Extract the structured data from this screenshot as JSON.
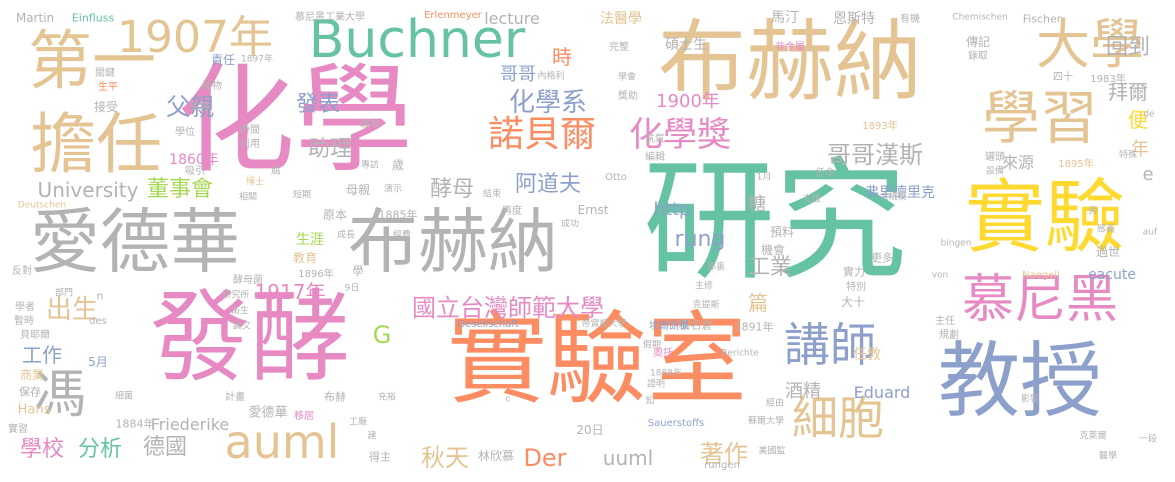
{
  "palette": {
    "pink": "#e78ac3",
    "orange": "#fc8d62",
    "green": "#66c2a5",
    "blue": "#8da0cb",
    "lime": "#a6d854",
    "yellow": "#ffd92f",
    "tan": "#e5c494",
    "gray": "#b3b3b3"
  },
  "words": {
    "w1": "化學",
    "w2": "研究",
    "w3": "布赫納",
    "w4": "實驗室",
    "w5": "發酵",
    "w6": "教授",
    "w7": "實驗",
    "w8": "愛德華",
    "w9": "布赫納",
    "w10": "擔任",
    "w11": "第一",
    "w12": "大學",
    "w13": "學習",
    "w14": "Buchner",
    "w15": "1907年",
    "w16": "慕尼黑",
    "w17": "auml",
    "w18": "講師",
    "w19": "細胞",
    "w20": "諾貝爾",
    "w21": "化學獎",
    "w22": "馮",
    "w23": "國立台灣師範大學",
    "w24": "哥哥漢斯",
    "w25": "父親",
    "w26": "化學系",
    "w27": "發表",
    "w28": "助理",
    "w29": "阿道夫",
    "w30": "出生",
    "w31": "酵母",
    "w32": "董事會",
    "w33": "University",
    "w34": "1917年",
    "w35": "1900年",
    "w36": "工業",
    "w37": "秋天",
    "w38": "Der",
    "w39": "學校",
    "w40": "分析",
    "w41": "德國",
    "w42": "著作",
    "w43": "uuml",
    "w44": "rung",
    "w45": "工作",
    "w46": "G",
    "w47": "回到",
    "w48": "拜爾",
    "w49": "便",
    "w50": "年",
    "w51": "時",
    "w52": "哥哥",
    "w53": "來源",
    "w54": "糖",
    "w55": "http",
    "w56": "篇",
    "w57": "酒精",
    "w58": "Eduard",
    "w59": "1860年",
    "w60": "lecture",
    "w61": "法醫學",
    "w62": "碩士生",
    "w63": "馬汀",
    "w64": "恩斯特",
    "w65": "弗里德里克",
    "w66": "責任",
    "w67": "生涯",
    "w68": "教育",
    "w69": "e",
    "w70": "eacute",
    "w71": "過世",
    "w72": "任教",
    "w73": "Friederike",
    "w74": "愛德華",
    "w75": "布赫",
    "w76": "母親",
    "w77": "原本",
    "w78": "Hans",
    "w79": "大十",
    "w80": "實力",
    "w81": "更多",
    "w82": "機會",
    "w83": "預料",
    "w84": "Ernst",
    "w85": "1885年",
    "w86": "Martin",
    "w87": "Einfluss",
    "w88": "Erlenmeyer",
    "w89": "慕尼黑工業大學",
    "w90": "Chemischen",
    "w91": "Fischer",
    "w92": "有機",
    "w93": "傳記",
    "w94": "錄取",
    "w95": "1893年",
    "w96": "1895年",
    "w97": "1983年",
    "w98": "四十",
    "w99": "非金屬",
    "w100": "完整",
    "w101": "內格利",
    "w102": "學會",
    "w103": "獎助",
    "w104": "Otto",
    "w105": "氣氣",
    "w106": "編輯",
    "w107": "1月",
    "w108": "任命",
    "w109": "支援",
    "w110": "大規模",
    "w111": "感義",
    "w112": "特殊",
    "w113": "設備",
    "w114": "罐頭",
    "w115": "bingen",
    "w116": "Naegeli",
    "w117": "auf",
    "w118": "von",
    "w119": "de",
    "w120": "特別",
    "w121": "主任",
    "w122": "規劃",
    "w123": "影響",
    "w124": "1891年",
    "w125": "葉名倉",
    "w126": "埃爾朗根",
    "w127": "克提斯",
    "w128": "帝實根大學",
    "w129": "Gesellschaft",
    "w130": "Berichte",
    "w131": "Sauerstoffs",
    "w132": "假期",
    "w133": "奧托",
    "w134": "1888年",
    "w135": "證明",
    "w136": "知",
    "w137": "蘇爾大學",
    "w138": "經由",
    "w139": "美國監",
    "w140": "rungen",
    "w141": "林欣慕",
    "w142": "得主",
    "w143": "20日",
    "w144": "克萊爾",
    "w145": "醫學",
    "w146": "一段",
    "w147": "5月",
    "w148": "貝耶爾",
    "w149": "商業",
    "w150": "保存",
    "w151": "細菌",
    "w152": "實習",
    "w153": "1884年",
    "w154": "計畫",
    "w155": "移居",
    "w156": "工廠",
    "w157": "衛生",
    "w158": "論文",
    "w159": "研究所",
    "w160": "酵母菌",
    "w161": "1896年",
    "w162": "9日",
    "w163": "學",
    "w164": "n",
    "w165": "des",
    "w166": "學者",
    "w167": "暫時",
    "w168": "部門",
    "w169": "反對",
    "w170": "Deutschen",
    "w171": "成長",
    "w172": "經費",
    "w173": "再度",
    "w174": "成功",
    "w175": "結束",
    "w176": "演示",
    "w177": "歲",
    "w178": "專訪",
    "w179": "破裂",
    "w180": "短期",
    "w181": "相關",
    "w182": "博士",
    "w183": "吸引",
    "w184": "利用",
    "w185": "時間",
    "w186": "學位",
    "w187": "監督",
    "w188": "植物",
    "w189": "1897年",
    "w190": "接受",
    "w191": "生平",
    "w192": "關鍵",
    "w193": "腐",
    "w194": "充裕",
    "w195": "c",
    "w196": "建",
    "w197": "旁",
    "w198": "主修",
    "w199": "那裏"
  }
}
